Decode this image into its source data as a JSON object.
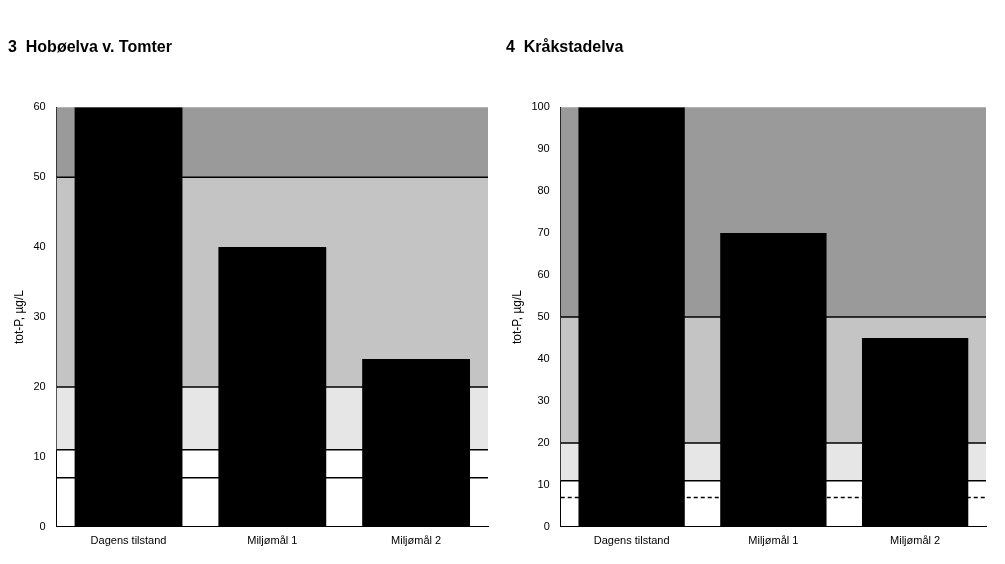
{
  "chart_data": [
    {
      "type": "bar",
      "title": "3  Hobøelva v. Tomter",
      "ylabel": "tot-P, µg/L",
      "categories": [
        "Dagens tilstand",
        "Miljømål 1",
        "Miljømål 2"
      ],
      "values": [
        60,
        40,
        24
      ],
      "color": "#000000",
      "ylim": [
        0,
        60
      ],
      "yticks": [
        0,
        10,
        20,
        30,
        40,
        50,
        60
      ],
      "grid": false,
      "legend": false,
      "bands": [
        {
          "axis": "y",
          "from": 50,
          "to": 60,
          "color": "#9a9a9a"
        },
        {
          "axis": "y",
          "from": 20,
          "to": 50,
          "color": "#c4c4c4"
        },
        {
          "axis": "y",
          "from": 11,
          "to": 20,
          "color": "#e6e6e6"
        }
      ],
      "ref_lines": [
        {
          "axis": "y",
          "value": 50,
          "color": "#000000",
          "line_style": "solid"
        },
        {
          "axis": "y",
          "value": 20,
          "color": "#000000",
          "line_style": "solid"
        },
        {
          "axis": "y",
          "value": 11,
          "color": "#000000",
          "line_style": "solid"
        },
        {
          "axis": "y",
          "value": 7,
          "color": "#000000",
          "line_style": "solid"
        }
      ]
    },
    {
      "type": "bar",
      "title": "4  Kråkstadelva",
      "ylabel": "tot-P, µg/L",
      "categories": [
        "Dagens tilstand",
        "Miljømål 1",
        "Miljømål 2"
      ],
      "values": [
        100,
        70,
        45
      ],
      "color": "#000000",
      "ylim": [
        0,
        100
      ],
      "yticks": [
        0,
        10,
        20,
        30,
        40,
        50,
        60,
        70,
        80,
        90,
        100
      ],
      "grid": false,
      "legend": false,
      "bands": [
        {
          "axis": "y",
          "from": 50,
          "to": 100,
          "color": "#9a9a9a"
        },
        {
          "axis": "y",
          "from": 20,
          "to": 50,
          "color": "#c4c4c4"
        },
        {
          "axis": "y",
          "from": 11,
          "to": 20,
          "color": "#e6e6e6"
        }
      ],
      "ref_lines": [
        {
          "axis": "y",
          "value": 50,
          "color": "#000000",
          "line_style": "solid"
        },
        {
          "axis": "y",
          "value": 20,
          "color": "#000000",
          "line_style": "solid"
        },
        {
          "axis": "y",
          "value": 11,
          "color": "#000000",
          "line_style": "solid"
        },
        {
          "axis": "y",
          "value": 7,
          "color": "#000000",
          "line_style": "dashed"
        }
      ]
    }
  ]
}
